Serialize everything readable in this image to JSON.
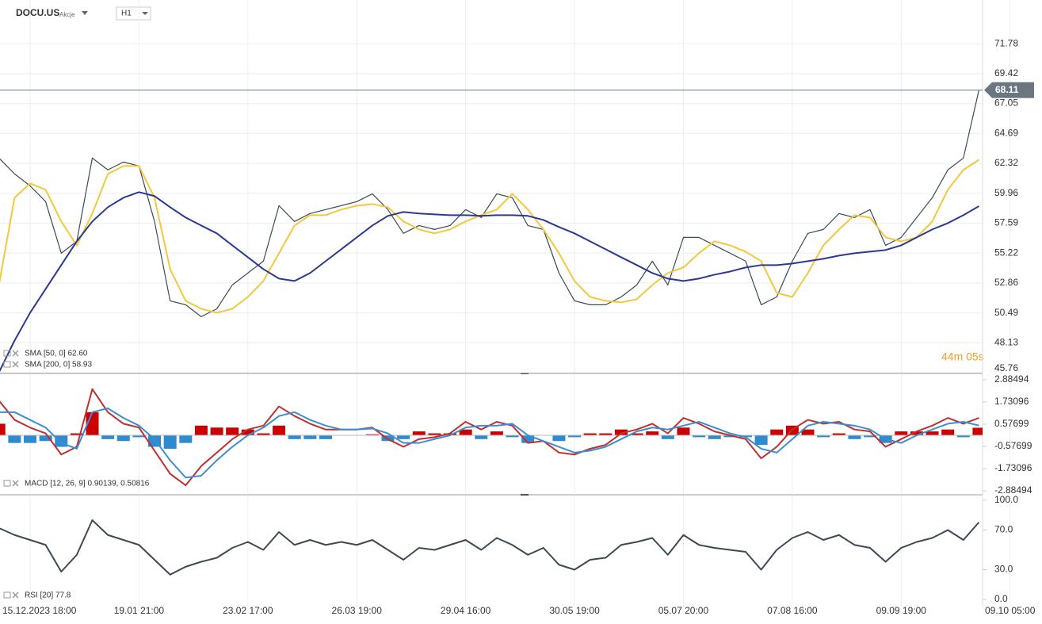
{
  "header": {
    "symbol": "DOCU.US",
    "instrument_type": "Akcje",
    "timeframe": "H1"
  },
  "countdown": "44m 05s",
  "chart_data": [
    {
      "type": "line",
      "grid": true,
      "ylim": [
        45.76,
        75.24
      ],
      "yticks": [
        71.78,
        69.42,
        67.05,
        64.69,
        62.32,
        59.96,
        57.59,
        55.22,
        52.86,
        50.49,
        48.13,
        45.76
      ],
      "last_price": 68.11,
      "series": [
        {
          "color": "#3d4a55",
          "values": [
            62.74,
            61.48,
            60.54,
            59.29,
            55.21,
            56.15,
            62.74,
            61.8,
            62.42,
            62.11,
            57.72,
            51.44,
            51.13,
            50.19,
            50.81,
            52.7,
            53.64,
            54.58,
            58.97,
            57.72,
            58.35,
            58.66,
            58.97,
            59.29,
            59.91,
            58.66,
            56.78,
            57.4,
            57.09,
            57.4,
            58.66,
            58.03,
            59.91,
            59.6,
            57.4,
            57.09,
            53.64,
            51.44,
            51.13,
            51.13,
            51.75,
            52.7,
            54.58,
            52.7,
            56.46,
            56.46,
            55.83,
            55.21,
            54.58,
            51.13,
            51.75,
            54.58,
            56.78,
            57.09,
            58.35,
            58.03,
            58.66,
            55.83,
            56.46,
            58.03,
            59.6,
            61.8,
            62.74,
            68.11
          ]
        },
        {
          "name": "SMA [50, 0] 62.60",
          "color": "#f3c83c",
          "values": [
            52.7,
            59.6,
            60.73,
            60.23,
            57.72,
            55.83,
            58.35,
            61.48,
            62.11,
            62.11,
            59.6,
            53.95,
            51.44,
            50.81,
            50.5,
            50.81,
            51.75,
            53.01,
            55.21,
            57.4,
            58.22,
            58.22,
            58.66,
            58.97,
            59.1,
            58.85,
            57.72,
            57.09,
            56.78,
            57.09,
            57.72,
            58.22,
            58.66,
            59.91,
            58.66,
            57.09,
            55.21,
            53.01,
            51.75,
            51.44,
            51.32,
            51.57,
            52.7,
            53.64,
            54.08,
            55.21,
            56.15,
            55.83,
            55.33,
            54.58,
            52.07,
            51.75,
            53.64,
            55.83,
            57.09,
            58.22,
            58.03,
            56.46,
            56.15,
            56.46,
            57.72,
            60.23,
            61.8,
            62.6
          ]
        },
        {
          "name": "SMA [200, 0] 58.93",
          "color": "#2b3990",
          "values": [
            45.79,
            48.3,
            50.5,
            52.38,
            54.27,
            56.15,
            57.72,
            58.85,
            59.6,
            60.04,
            59.73,
            58.85,
            58.03,
            57.4,
            56.78,
            55.83,
            54.89,
            53.95,
            53.2,
            53.01,
            53.64,
            54.58,
            55.52,
            56.46,
            57.4,
            58.16,
            58.47,
            58.35,
            58.28,
            58.22,
            58.22,
            58.16,
            58.22,
            58.22,
            58.16,
            57.84,
            57.28,
            56.78,
            56.15,
            55.52,
            54.89,
            54.27,
            53.64,
            53.2,
            53.01,
            53.2,
            53.51,
            53.76,
            54.08,
            54.27,
            54.27,
            54.39,
            54.58,
            54.77,
            55.02,
            55.21,
            55.33,
            55.46,
            55.83,
            56.46,
            57.09,
            57.59,
            58.22,
            58.93
          ]
        }
      ]
    },
    {
      "type": "macd",
      "legend": "MACD [12, 26, 9] 0.90139, 0.50816",
      "ylim": [
        -3.09,
        3.17
      ],
      "yticks": [
        2.88494,
        1.73096,
        0.57699,
        -0.57699,
        -1.73096,
        -2.88494
      ],
      "histogram": {
        "positive_color": "#cc0000",
        "negative_color": "#2e8bcf",
        "values": [
          0.6,
          -0.4,
          -0.4,
          -0.3,
          -0.6,
          0.1,
          1.2,
          -0.2,
          -0.3,
          -0.1,
          -0.6,
          -0.7,
          -0.4,
          0.5,
          0.4,
          0.4,
          0.3,
          0.1,
          0.5,
          -0.2,
          -0.2,
          -0.2,
          0,
          0,
          0.05,
          -0.3,
          -0.2,
          0.2,
          0.1,
          0.1,
          0.3,
          -0.2,
          0.2,
          -0.1,
          -0.4,
          0,
          -0.3,
          -0.1,
          0.1,
          0.1,
          0.3,
          0.1,
          0.2,
          -0.2,
          0.4,
          -0.1,
          -0.2,
          -0.1,
          -0.1,
          -0.5,
          0.3,
          0.5,
          0.3,
          -0.1,
          0.1,
          -0.2,
          -0.1,
          -0.4,
          0.2,
          0.2,
          0.2,
          0.3,
          -0.1,
          0.39
        ]
      },
      "series": [
        {
          "color": "#c03030",
          "values": [
            1.8,
            0.8,
            0.4,
            0.1,
            -1.0,
            -0.6,
            2.4,
            1.2,
            0.6,
            0.4,
            -0.8,
            -2.0,
            -2.6,
            -1.6,
            -0.9,
            -0.2,
            0.3,
            0.5,
            1.5,
            1.0,
            0.6,
            0.3,
            0.3,
            0.3,
            0.4,
            -0.2,
            -0.6,
            -0.2,
            -0.1,
            0.1,
            0.7,
            0.3,
            0.7,
            0.5,
            -0.4,
            -0.3,
            -0.9,
            -1.0,
            -0.7,
            -0.5,
            0.1,
            0.3,
            0.6,
            0.1,
            0.9,
            0.6,
            0.2,
            0.0,
            -0.2,
            -1.2,
            -0.6,
            0.3,
            0.8,
            0.6,
            0.7,
            0.3,
            0.2,
            -0.6,
            -0.2,
            0.2,
            0.5,
            0.9,
            0.6,
            0.90139
          ]
        },
        {
          "color": "#3a8fd0",
          "values": [
            1.2,
            1.2,
            0.8,
            0.4,
            -0.4,
            -0.7,
            1.2,
            1.4,
            0.9,
            0.5,
            -0.2,
            -1.3,
            -2.2,
            -2.1,
            -1.3,
            -0.6,
            0.0,
            0.4,
            1.0,
            1.2,
            0.8,
            0.5,
            0.3,
            0.3,
            0.35,
            0.1,
            -0.4,
            -0.4,
            -0.2,
            0.0,
            0.4,
            0.5,
            0.5,
            0.6,
            0.0,
            -0.3,
            -0.6,
            -0.9,
            -0.8,
            -0.6,
            -0.2,
            0.2,
            0.4,
            0.3,
            0.5,
            0.7,
            0.4,
            0.1,
            -0.1,
            -0.7,
            -0.9,
            -0.2,
            0.5,
            0.7,
            0.6,
            0.5,
            0.3,
            -0.2,
            -0.4,
            0.0,
            0.3,
            0.6,
            0.7,
            0.50816
          ]
        }
      ]
    },
    {
      "type": "line",
      "ylim": [
        -7.2,
        104.8
      ],
      "yticks": [
        {
          "value": 100,
          "label": "100.0"
        },
        {
          "value": 70,
          "label": "70.0"
        },
        {
          "value": 30,
          "label": "30.0"
        },
        {
          "value": 0,
          "label": "0.0"
        }
      ],
      "categories": [
        null,
        null,
        "15.12.2023  18:00",
        null,
        null,
        null,
        null,
        null,
        null,
        "19.01  21:00",
        null,
        null,
        null,
        null,
        null,
        null,
        "23.02  17:00",
        null,
        null,
        null,
        null,
        null,
        null,
        "26.03  19:00",
        null,
        null,
        null,
        null,
        null,
        null,
        "29.04  16:00",
        null,
        null,
        null,
        null,
        null,
        null,
        "30.05  19:00",
        null,
        null,
        null,
        null,
        null,
        null,
        "05.07  20:00",
        null,
        null,
        null,
        null,
        null,
        null,
        "07.08  16:00",
        null,
        null,
        null,
        null,
        null,
        null,
        "09.09  19:00",
        null,
        null,
        null,
        null,
        null,
        null,
        "09.10  05:00"
      ],
      "series": [
        {
          "name": "RSI [20] 77.8",
          "color": "#3d4a55",
          "values": [
            72,
            65,
            60,
            55,
            28,
            45,
            80,
            65,
            60,
            55,
            40,
            25,
            33,
            38,
            42,
            52,
            58,
            50,
            68,
            55,
            60,
            55,
            58,
            55,
            60,
            50,
            40,
            52,
            50,
            55,
            60,
            50,
            62,
            55,
            45,
            52,
            35,
            30,
            40,
            42,
            55,
            58,
            62,
            45,
            65,
            55,
            52,
            50,
            48,
            30,
            50,
            62,
            68,
            60,
            65,
            55,
            52,
            38,
            52,
            58,
            62,
            70,
            60,
            77.8,
            null,
            null
          ]
        }
      ]
    }
  ]
}
